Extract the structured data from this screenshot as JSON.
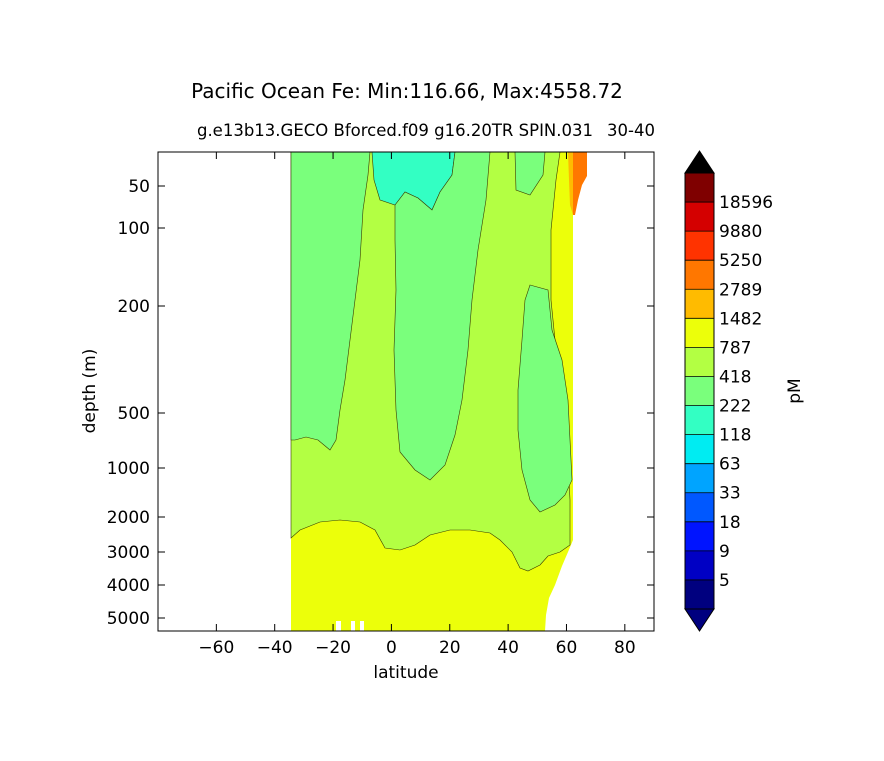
{
  "chart_data": {
    "type": "filled-contour",
    "title": "Pacific Ocean Fe: Min:116.66, Max:4558.72",
    "subtitle": "g.e13b13.GECO Bforced.f09 g16.20TR SPIN.031",
    "subtitle_right": "30-40",
    "xlabel": "latitude",
    "ylabel": "depth (m)",
    "xlim": [
      -80,
      90
    ],
    "y_scale": "nonlinear (compressed with depth)",
    "x_ticks": [
      -60,
      -40,
      -20,
      0,
      20,
      40,
      60,
      80
    ],
    "x_tick_labels": [
      "−60",
      "−40",
      "−20",
      "0",
      "20",
      "40",
      "60",
      "80"
    ],
    "y_ticks": [
      50,
      100,
      200,
      500,
      1000,
      2000,
      3000,
      4000,
      5000
    ],
    "y_tick_labels": [
      "50",
      "100",
      "200",
      "500",
      "1000",
      "2000",
      "3000",
      "4000",
      "5000"
    ],
    "data_lat_range": [
      -35,
      67
    ],
    "colorbar": {
      "label": "pM",
      "extend": "both",
      "levels": [
        5,
        9,
        18,
        33,
        63,
        118,
        222,
        418,
        787,
        1482,
        2789,
        5250,
        9880,
        18596
      ],
      "colors": [
        "#00007f",
        "#0000c4",
        "#0014ff",
        "#0058ff",
        "#00a4ff",
        "#00ecf2",
        "#33ffc3",
        "#7aff7c",
        "#b3ff43",
        "#ecff0a",
        "#ffbb00",
        "#ff7700",
        "#ff3300",
        "#d40000",
        "#7f0000"
      ],
      "extend_low_color": "#00007f",
      "extend_high_color": "#000000"
    },
    "regions": [
      {
        "range": "418-787 pM",
        "color": "#7aff7c",
        "where": "upper water column, approx. 35S-15S down to ~700 m and 5N-25N down to ~900 m"
      },
      {
        "range": "222-418 pM",
        "color": "#33ffc3",
        "where": "near-surface patch approx. 5S-15N, upper ~100 m"
      },
      {
        "range": "787-1482 pM",
        "color": "#b3ff43",
        "where": "intermediate depths ~700-2500 m across basin"
      },
      {
        "range": "1482-2789 pM",
        "color": "#ecff0a",
        "where": "deep water below ~2500 m and near 60N"
      },
      {
        "range": "2789-9880 pM",
        "color": "#ff7700",
        "where": "surface north of ~62N"
      }
    ]
  }
}
